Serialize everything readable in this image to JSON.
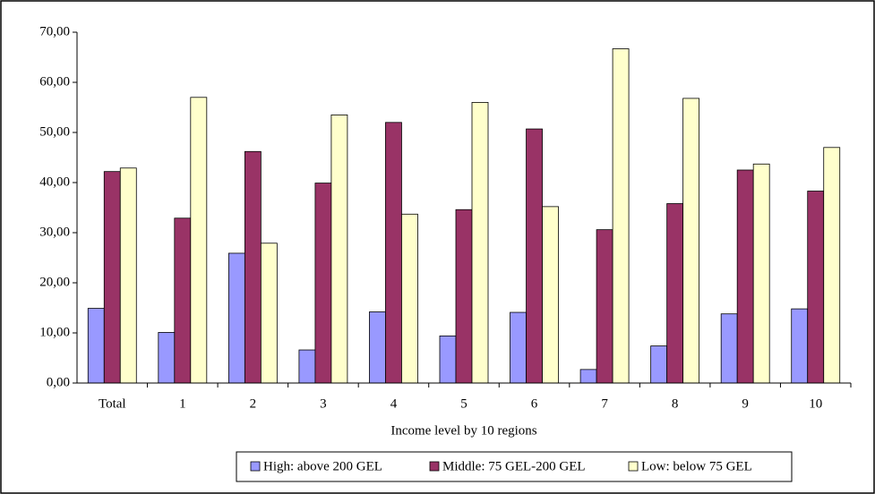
{
  "chart_data": {
    "type": "bar",
    "x_label": "Income level by 10 regions",
    "categories": [
      "Total",
      "1",
      "2",
      "3",
      "4",
      "5",
      "6",
      "7",
      "8",
      "9",
      "10"
    ],
    "series": [
      {
        "name": "High: above 200 GEL",
        "color": "#9999ff",
        "values": [
          14.9,
          10.1,
          25.9,
          6.6,
          14.2,
          9.4,
          14.1,
          2.7,
          7.4,
          13.8,
          14.8
        ]
      },
      {
        "name": "Middle: 75 GEL-200 GEL",
        "color": "#993366",
        "values": [
          42.2,
          32.9,
          46.2,
          39.9,
          52.0,
          34.6,
          50.7,
          30.6,
          35.8,
          42.5,
          38.3
        ]
      },
      {
        "name": "Low: below 75 GEL",
        "color": "#ffffcc",
        "values": [
          42.9,
          57.0,
          27.9,
          53.5,
          33.7,
          56.0,
          35.2,
          66.7,
          56.8,
          43.7,
          47.0
        ]
      }
    ],
    "ylim": [
      0,
      70
    ],
    "yticks": [
      {
        "value": 0,
        "label": "0,00"
      },
      {
        "value": 10,
        "label": "10,00"
      },
      {
        "value": 20,
        "label": "20,00"
      },
      {
        "value": 30,
        "label": "30,00"
      },
      {
        "value": 40,
        "label": "40,00"
      },
      {
        "value": 50,
        "label": "50,00"
      },
      {
        "value": 60,
        "label": "60,00"
      },
      {
        "value": 70,
        "label": "70,00"
      }
    ],
    "legend": "bottom"
  }
}
